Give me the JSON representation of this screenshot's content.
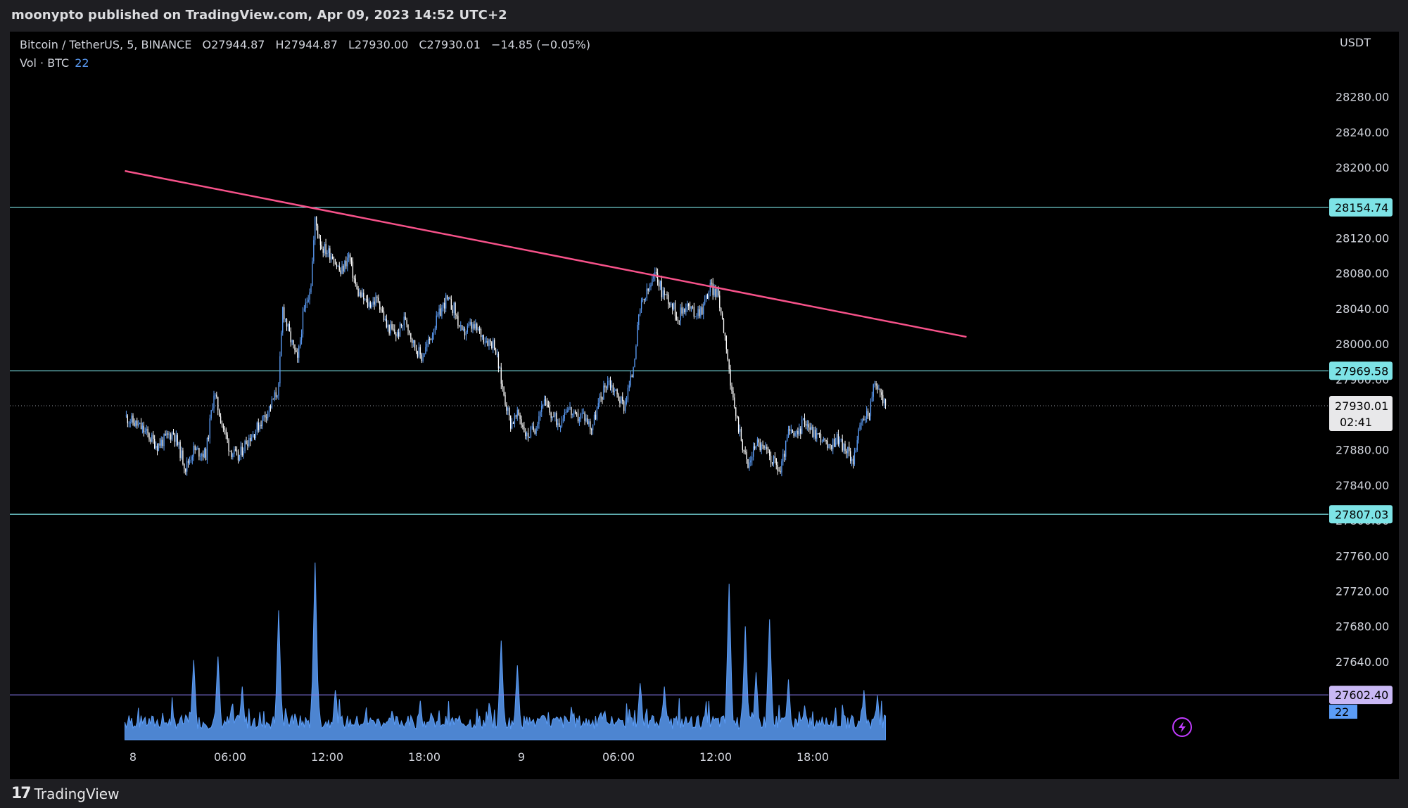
{
  "header": {
    "published_by": "moonypto published on TradingView.com, Apr 09, 2023 14:52 UTC+2"
  },
  "legend": {
    "symbol": "Bitcoin / TetherUS, 5, BINANCE",
    "open": "O27944.87",
    "high": "H27944.87",
    "low": "L27930.00",
    "close": "C27930.01",
    "change": "−14.85 (−0.05%)",
    "volume_label": "Vol · BTC",
    "volume_value": "22"
  },
  "footer": {
    "brand": "TradingView"
  },
  "colors": {
    "up": "#5b9cf6",
    "down": "#ffffff",
    "trendline": "#f7528a",
    "level": "#7de3e6",
    "volume": "#5b9cf6",
    "alert": "#c13cff"
  },
  "chart_data": {
    "type": "candlestick",
    "interval": "5",
    "exchange": "BINANCE",
    "y_unit": "USDT",
    "ylim": [
      27565,
      28330
    ],
    "y_ticks": [
      "28280.00",
      "28240.00",
      "28200.00",
      "28160.00",
      "28120.00",
      "28080.00",
      "28040.00",
      "28000.00",
      "27960.00",
      "27930.01",
      "27880.00",
      "27840.00",
      "27800.00",
      "27760.00",
      "27720.00",
      "27680.00",
      "27640.00",
      "27600.00"
    ],
    "x_ticks": [
      "8",
      "06:00",
      "12:00",
      "18:00",
      "9",
      "06:00",
      "12:00",
      "18:00"
    ],
    "close_path": [
      [
        "04-07 23:30",
        27918
      ],
      [
        "04-08 00:30",
        27905
      ],
      [
        "04-08 01:30",
        27885
      ],
      [
        "04-08 02:30",
        27900
      ],
      [
        "04-08 03:15",
        27860
      ],
      [
        "04-08 03:45",
        27880
      ],
      [
        "04-08 04:30",
        27875
      ],
      [
        "04-08 05:00",
        27945
      ],
      [
        "04-08 05:30",
        27910
      ],
      [
        "04-08 06:00",
        27880
      ],
      [
        "04-08 06:30",
        27870
      ],
      [
        "04-08 07:00",
        27890
      ],
      [
        "04-08 07:30",
        27900
      ],
      [
        "04-08 08:00",
        27915
      ],
      [
        "04-08 08:30",
        27930
      ],
      [
        "04-08 09:00",
        27950
      ],
      [
        "04-08 09:15",
        28040
      ],
      [
        "04-08 09:40",
        28010
      ],
      [
        "04-08 10:10",
        27980
      ],
      [
        "04-08 10:30",
        28030
      ],
      [
        "04-08 11:00",
        28070
      ],
      [
        "04-08 11:15",
        28140
      ],
      [
        "04-08 11:40",
        28110
      ],
      [
        "04-08 12:20",
        28100
      ],
      [
        "04-08 12:50",
        28080
      ],
      [
        "04-08 13:20",
        28100
      ],
      [
        "04-08 13:50",
        28060
      ],
      [
        "04-08 14:30",
        28045
      ],
      [
        "04-08 15:10",
        28050
      ],
      [
        "04-08 15:40",
        28020
      ],
      [
        "04-08 16:20",
        28010
      ],
      [
        "04-08 16:50",
        28030
      ],
      [
        "04-08 17:20",
        28000
      ],
      [
        "04-08 17:50",
        27985
      ],
      [
        "04-08 18:20",
        28005
      ],
      [
        "04-08 18:50",
        28030
      ],
      [
        "04-08 19:20",
        28050
      ],
      [
        "04-08 19:50",
        28040
      ],
      [
        "04-08 20:20",
        28010
      ],
      [
        "04-08 20:50",
        28020
      ],
      [
        "04-08 21:20",
        28015
      ],
      [
        "04-08 21:50",
        28005
      ],
      [
        "04-08 22:20",
        28000
      ],
      [
        "04-08 22:50",
        27950
      ],
      [
        "04-08 23:20",
        27910
      ],
      [
        "04-08 23:50",
        27920
      ],
      [
        "04-09 00:20",
        27895
      ],
      [
        "04-09 00:50",
        27905
      ],
      [
        "04-09 01:20",
        27935
      ],
      [
        "04-09 01:50",
        27920
      ],
      [
        "04-09 02:20",
        27910
      ],
      [
        "04-09 02:50",
        27930
      ],
      [
        "04-09 03:20",
        27915
      ],
      [
        "04-09 03:50",
        27920
      ],
      [
        "04-09 04:20",
        27905
      ],
      [
        "04-09 04:50",
        27935
      ],
      [
        "04-09 05:20",
        27960
      ],
      [
        "04-09 05:50",
        27945
      ],
      [
        "04-09 06:20",
        27930
      ],
      [
        "04-09 06:50",
        27965
      ],
      [
        "04-09 07:20",
        28040
      ],
      [
        "04-09 07:50",
        28060
      ],
      [
        "04-09 08:20",
        28080
      ],
      [
        "04-09 08:40",
        28060
      ],
      [
        "04-09 09:10",
        28050
      ],
      [
        "04-09 09:40",
        28030
      ],
      [
        "04-09 10:10",
        28045
      ],
      [
        "04-09 10:40",
        28035
      ],
      [
        "04-09 11:10",
        28040
      ],
      [
        "04-09 11:40",
        28065
      ],
      [
        "04-09 12:10",
        28055
      ],
      [
        "04-09 12:40",
        28000
      ],
      [
        "04-09 13:00",
        27940
      ],
      [
        "04-09 13:30",
        27900
      ],
      [
        "04-09 14:00",
        27860
      ],
      [
        "04-09 14:30",
        27890
      ],
      [
        "04-09 15:00",
        27880
      ],
      [
        "04-09 15:30",
        27870
      ],
      [
        "04-09 16:00",
        27855
      ],
      [
        "04-09 16:30",
        27900
      ],
      [
        "04-09 17:00",
        27895
      ],
      [
        "04-09 17:30",
        27915
      ],
      [
        "04-09 18:00",
        27900
      ],
      [
        "04-09 18:30",
        27895
      ],
      [
        "04-09 19:00",
        27880
      ],
      [
        "04-09 19:30",
        27895
      ],
      [
        "04-09 20:00",
        27880
      ],
      [
        "04-09 20:30",
        27870
      ],
      [
        "04-09 21:00",
        27910
      ],
      [
        "04-09 21:30",
        27925
      ],
      [
        "04-09 21:50",
        27955
      ],
      [
        "04-09 22:10",
        27945
      ],
      [
        "04-09 22:30",
        27930
      ]
    ],
    "horizontal_levels": [
      {
        "value": 28154.74,
        "label": "28154.74"
      },
      {
        "value": 27969.58,
        "label": "27969.58"
      },
      {
        "value": 27807.03,
        "label": "27807.03"
      }
    ],
    "trendline": {
      "from": [
        "04-07 23:30",
        28196
      ],
      "to": [
        "04-10 03:30",
        28008
      ]
    },
    "last_price": {
      "value": 27930.01,
      "label": "27930.01",
      "countdown": "02:41"
    },
    "volume": {
      "unit": "BTC",
      "last": "22",
      "alert_level": 27602.4,
      "alert_label": "27602.40",
      "spikes": [
        [
          "04-08 03:45",
          0.45
        ],
        [
          "04-08 05:15",
          0.47
        ],
        [
          "04-08 06:45",
          0.3
        ],
        [
          "04-08 09:00",
          0.73
        ],
        [
          "04-08 11:15",
          1.0
        ],
        [
          "04-08 12:30",
          0.28
        ],
        [
          "04-08 17:45",
          0.22
        ],
        [
          "04-08 22:45",
          0.56
        ],
        [
          "04-08 23:45",
          0.42
        ],
        [
          "04-09 07:20",
          0.32
        ],
        [
          "04-09 08:50",
          0.3
        ],
        [
          "04-09 12:50",
          0.88
        ],
        [
          "04-09 13:50",
          0.64
        ],
        [
          "04-09 14:30",
          0.38
        ],
        [
          "04-09 15:20",
          0.68
        ],
        [
          "04-09 16:30",
          0.34
        ],
        [
          "04-09 21:10",
          0.28
        ],
        [
          "04-09 22:00",
          0.25
        ]
      ]
    }
  }
}
